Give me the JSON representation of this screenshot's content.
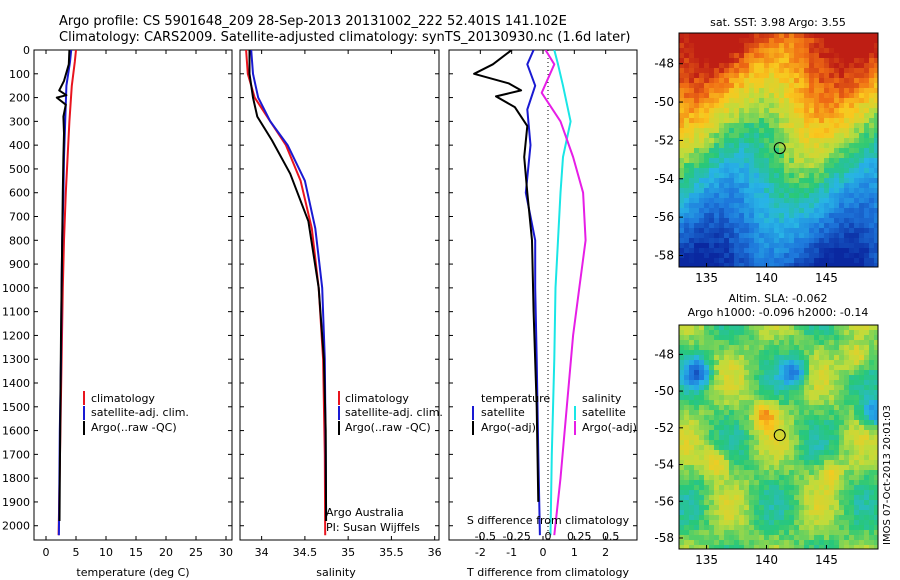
{
  "header": {
    "line1": "Argo profile: CS 5901648_209 28-Sep-2013 20131002_222 52.401S 141.102E",
    "line2": "Climatology: CARS2009. Satellite-adjusted climatology: synTS_20130930.nc (1.6d later)"
  },
  "colors": {
    "climatology": "#e8141e",
    "satellite": "#1a1ad2",
    "argo": "#000000",
    "satellite_salinity": "#19e6e6",
    "argo_salinity_adj": "#e61ee6"
  },
  "chart_data": [
    {
      "id": "temperature",
      "type": "line",
      "xlabel": "temperature (deg C)",
      "xlim": [
        -2,
        31
      ],
      "xticks": [
        "0",
        "5",
        "10",
        "15",
        "20",
        "25",
        "30"
      ],
      "xtick_values": [
        0,
        5,
        10,
        15,
        20,
        25,
        30
      ],
      "ylim": [
        0,
        2060
      ],
      "yticks": [
        "0",
        "100",
        "200",
        "300",
        "400",
        "500",
        "600",
        "700",
        "800",
        "900",
        "1000",
        "1100",
        "1200",
        "1300",
        "1400",
        "1500",
        "1600",
        "1700",
        "1800",
        "1900",
        "2000"
      ],
      "ytick_values": [
        0,
        100,
        200,
        300,
        400,
        500,
        600,
        700,
        800,
        900,
        1000,
        1100,
        1200,
        1300,
        1400,
        1500,
        1600,
        1700,
        1800,
        1900,
        2000
      ],
      "legend": [
        "climatology",
        "satellite-adj. clim.",
        "Argo(..raw -QC)"
      ],
      "legend_position": "lower-middle",
      "series": [
        {
          "name": "climatology",
          "color": "#e8141e",
          "x": [
            5.0,
            4.8,
            4.3,
            3.9,
            3.6,
            3.3,
            3.0,
            2.8,
            2.6,
            2.4,
            2.2,
            2.1
          ],
          "y": [
            0,
            50,
            150,
            300,
            450,
            600,
            800,
            1000,
            1300,
            1600,
            1900,
            2040
          ]
        },
        {
          "name": "satellite-adj. clim.",
          "color": "#1a1ad2",
          "x": [
            4.2,
            4.0,
            3.4,
            3.2,
            3.0,
            2.9,
            2.7,
            2.6,
            2.5,
            2.3,
            2.2,
            2.15
          ],
          "y": [
            0,
            50,
            150,
            300,
            450,
            600,
            800,
            1000,
            1300,
            1600,
            1900,
            2040
          ]
        },
        {
          "name": "Argo(..raw -QC)",
          "color": "#000000",
          "x": [
            3.9,
            3.8,
            3.0,
            2.2,
            3.4,
            1.8,
            3.3,
            2.9,
            3.0,
            2.9,
            2.8,
            2.7,
            2.6,
            2.5,
            2.4,
            2.3,
            2.25
          ],
          "y": [
            0,
            60,
            130,
            170,
            190,
            200,
            230,
            280,
            350,
            450,
            600,
            800,
            1000,
            1200,
            1500,
            1800,
            1980
          ]
        }
      ]
    },
    {
      "id": "salinity",
      "type": "line",
      "xlabel": "salinity",
      "xlim": [
        33.75,
        36.05
      ],
      "xticks": [
        "34",
        "34.5",
        "35",
        "35.5",
        "36"
      ],
      "xtick_values": [
        34,
        34.5,
        35,
        35.5,
        36
      ],
      "ylim": [
        0,
        2060
      ],
      "legend": [
        "climatology",
        "satellite-adj. clim.",
        "Argo(..raw -QC)"
      ],
      "legend_position": "lower-middle",
      "annotations": [
        "Argo Australia",
        "PI: Susan Wijffels"
      ],
      "series": [
        {
          "name": "climatology",
          "color": "#e8141e",
          "x": [
            33.82,
            33.84,
            33.92,
            34.1,
            34.28,
            34.45,
            34.58,
            34.66,
            34.71,
            34.73,
            34.735
          ],
          "y": [
            0,
            100,
            200,
            300,
            400,
            550,
            750,
            1000,
            1300,
            1700,
            2040
          ]
        },
        {
          "name": "satellite-adj. clim.",
          "color": "#1a1ad2",
          "x": [
            33.88,
            33.9,
            33.96,
            34.1,
            34.3,
            34.5,
            34.62,
            34.7,
            34.73,
            34.74,
            34.745
          ],
          "y": [
            0,
            100,
            200,
            300,
            400,
            550,
            750,
            1000,
            1300,
            1700,
            1960
          ]
        },
        {
          "name": "Argo(..raw -QC)",
          "color": "#000000",
          "x": [
            33.86,
            33.86,
            33.9,
            33.95,
            34.12,
            34.33,
            34.54,
            34.66,
            34.72,
            34.74,
            34.745
          ],
          "y": [
            0,
            100,
            200,
            280,
            380,
            520,
            720,
            1000,
            1300,
            1600,
            1980
          ]
        }
      ]
    },
    {
      "id": "difference",
      "type": "line",
      "xlabel": "T difference from climatology",
      "xlabel_top": "S difference from climatology",
      "xlim": [
        -3,
        3
      ],
      "xticks": [
        "-2",
        "-1",
        "0",
        "1",
        "2"
      ],
      "xtick_values": [
        -2,
        -1,
        0,
        1,
        2
      ],
      "xticks_s": [
        "-0.5",
        "-0.25",
        "0",
        "0.25",
        "0.5"
      ],
      "xtick_values_s": [
        -0.5,
        -0.25,
        0,
        0.25,
        0.5
      ],
      "ylim": [
        0,
        2060
      ],
      "legend_temperature_title": "temperature",
      "legend_salinity_title": "salinity",
      "legend": [
        "satellite",
        "Argo(-adj)",
        "satellite",
        "Argo(-adj)"
      ],
      "legend_position": "lower",
      "series": [
        {
          "name": "satellite",
          "group": "temperature",
          "color": "#1a1ad2",
          "x": [
            -0.3,
            -0.5,
            -0.25,
            -0.5,
            -0.4,
            -0.55,
            -0.25,
            -0.25,
            -0.2,
            -0.15,
            -0.1
          ],
          "y": [
            0,
            60,
            150,
            250,
            400,
            600,
            800,
            1000,
            1300,
            1700,
            2040
          ]
        },
        {
          "name": "Argo(-adj)",
          "group": "temperature",
          "color": "#000000",
          "x": [
            -1.0,
            -1.6,
            -2.2,
            -1.1,
            -0.7,
            -1.5,
            -0.9,
            -0.5,
            -0.6,
            -0.5,
            -0.35,
            -0.3,
            -0.2,
            -0.15
          ],
          "y": [
            0,
            60,
            100,
            140,
            170,
            195,
            240,
            320,
            450,
            600,
            800,
            1100,
            1500,
            1900
          ]
        },
        {
          "name": "satellite",
          "group": "salinity",
          "color": "#19e6e6",
          "x": [
            0.05,
            0.08,
            0.12,
            0.18,
            0.12,
            0.1,
            0.08,
            0.06,
            0.05,
            0.03,
            0.02
          ],
          "y": [
            0,
            60,
            150,
            300,
            450,
            600,
            800,
            1000,
            1300,
            1700,
            2040
          ]
        },
        {
          "name": "Argo(-adj)",
          "group": "salinity",
          "color": "#e61ee6",
          "x": [
            -0.02,
            0.05,
            -0.05,
            0.1,
            0.2,
            0.28,
            0.3,
            0.25,
            0.2,
            0.15,
            0.1,
            0.05
          ],
          "y": [
            0,
            60,
            180,
            300,
            450,
            600,
            800,
            1000,
            1200,
            1500,
            1800,
            2040
          ]
        }
      ]
    }
  ],
  "maps": [
    {
      "id": "sst-map",
      "title": "sat. SST: 3.98 Argo: 3.55",
      "xticks": [
        "135",
        "140",
        "145"
      ],
      "xtick_values": [
        135,
        140,
        145
      ],
      "yticks": [
        "-48",
        "-50",
        "-52",
        "-54",
        "-56",
        "-58"
      ],
      "ytick_values": [
        -48,
        -50,
        -52,
        -54,
        -56,
        -58
      ],
      "xlim": [
        132.7,
        149.3
      ],
      "ylim": [
        -58.6,
        -46.4
      ],
      "marker": [
        141.102,
        -52.401
      ]
    },
    {
      "id": "sla-map",
      "title1": "Altim. SLA: -0.062",
      "title2": "Argo h1000: -0.096 h2000: -0.14",
      "xticks": [
        "135",
        "140",
        "145"
      ],
      "xtick_values": [
        135,
        140,
        145
      ],
      "yticks": [
        "-48",
        "-50",
        "-52",
        "-54",
        "-56",
        "-58"
      ],
      "ytick_values": [
        -48,
        -50,
        -52,
        -54,
        -56,
        -58
      ],
      "xlim": [
        132.7,
        149.3
      ],
      "ylim": [
        -58.6,
        -46.4
      ],
      "marker": [
        141.102,
        -52.401
      ]
    }
  ],
  "footer_stamp": "IMOS 07-Oct-2013 20:01:03"
}
